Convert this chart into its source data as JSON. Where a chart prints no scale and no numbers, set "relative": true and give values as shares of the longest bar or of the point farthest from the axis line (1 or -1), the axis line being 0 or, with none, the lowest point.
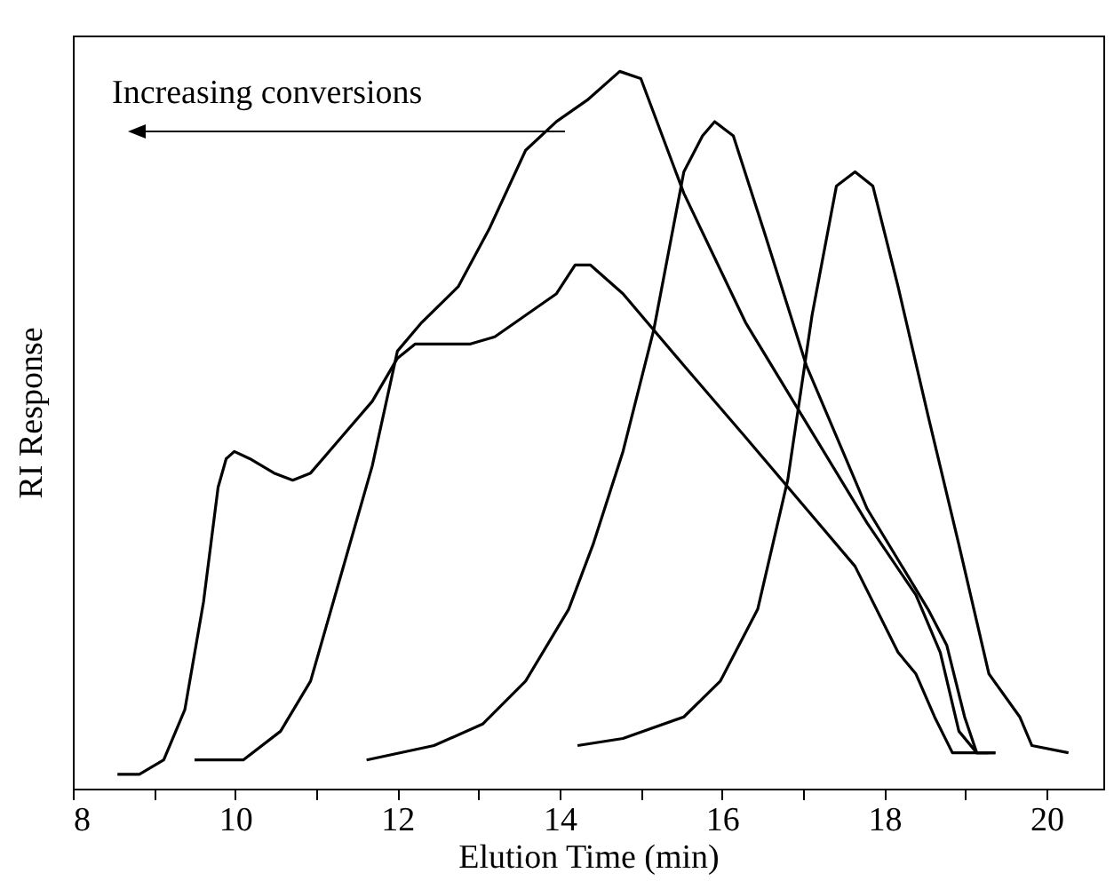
{
  "chart_data": {
    "type": "line",
    "relative": true,
    "xlabel": "Elution Time (min)",
    "ylabel": "RI Response",
    "xlim": [
      8,
      20.7
    ],
    "xticks": [
      8,
      {
        "value": 9,
        "label": null
      },
      10,
      {
        "value": 11,
        "label": null
      },
      12,
      {
        "value": 13,
        "label": null
      },
      14,
      {
        "value": 15,
        "label": null
      },
      16,
      {
        "value": 17,
        "label": null
      },
      18,
      {
        "value": 19,
        "label": null
      },
      20
    ],
    "annotations": [
      "Increasing conversions"
    ],
    "grid": false,
    "marker": "none",
    "line_style": "solid",
    "series": [
      {
        "color": "#000000",
        "x": [
          8.55,
          8.82,
          9.12,
          9.38,
          9.61,
          9.79,
          9.89,
          9.99,
          10.18,
          10.48,
          10.71,
          10.93,
          11.31,
          11.69,
          12.0,
          12.22,
          12.52,
          12.9,
          13.2,
          13.58,
          13.96,
          14.19,
          14.38,
          14.78,
          15.53,
          16.29,
          17.04,
          17.64,
          18.17,
          18.39,
          18.62,
          18.84,
          18.99,
          19.29
        ],
        "values": [
          0.02,
          0.02,
          0.04,
          0.11,
          0.26,
          0.42,
          0.46,
          0.47,
          0.46,
          0.44,
          0.43,
          0.44,
          0.49,
          0.54,
          0.6,
          0.62,
          0.62,
          0.62,
          0.63,
          0.66,
          0.69,
          0.73,
          0.73,
          0.69,
          0.59,
          0.49,
          0.39,
          0.31,
          0.19,
          0.16,
          0.1,
          0.05,
          0.05,
          0.05
        ]
      },
      {
        "color": "#000000",
        "x": [
          9.5,
          10.1,
          10.56,
          10.93,
          11.31,
          11.69,
          12.0,
          12.3,
          12.75,
          13.13,
          13.58,
          13.96,
          14.34,
          14.74,
          15.0,
          15.53,
          16.29,
          17.04,
          17.79,
          18.39,
          18.69,
          18.92,
          19.14,
          19.37
        ],
        "values": [
          0.04,
          0.04,
          0.08,
          0.15,
          0.3,
          0.45,
          0.61,
          0.65,
          0.7,
          0.78,
          0.89,
          0.93,
          0.96,
          1.0,
          0.99,
          0.83,
          0.65,
          0.51,
          0.37,
          0.27,
          0.19,
          0.08,
          0.05,
          0.05
        ]
      },
      {
        "color": "#000000",
        "x": [
          11.62,
          12.45,
          13.05,
          13.58,
          14.11,
          14.41,
          14.78,
          15.16,
          15.53,
          15.76,
          15.91,
          16.14,
          16.51,
          17.04,
          17.79,
          18.54,
          18.77,
          18.99,
          19.14,
          19.37
        ],
        "values": [
          0.04,
          0.06,
          0.09,
          0.15,
          0.25,
          0.34,
          0.47,
          0.64,
          0.86,
          0.91,
          0.93,
          0.91,
          0.78,
          0.59,
          0.39,
          0.25,
          0.2,
          0.1,
          0.05,
          0.05
        ]
      },
      {
        "color": "#000000",
        "x": [
          14.22,
          14.78,
          15.53,
          15.98,
          16.44,
          16.81,
          17.11,
          17.41,
          17.64,
          17.86,
          18.17,
          18.54,
          18.92,
          19.29,
          19.67,
          19.82,
          20.27
        ],
        "values": [
          0.06,
          0.07,
          0.1,
          0.15,
          0.25,
          0.43,
          0.66,
          0.84,
          0.86,
          0.84,
          0.7,
          0.52,
          0.34,
          0.16,
          0.1,
          0.06,
          0.05
        ]
      }
    ]
  }
}
